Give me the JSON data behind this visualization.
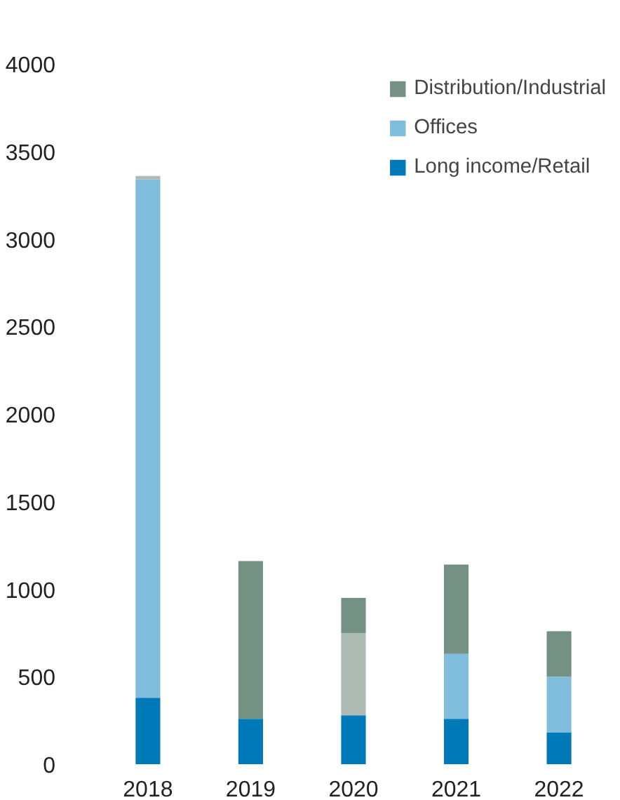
{
  "chart_data": {
    "type": "bar",
    "stacked": true,
    "categories": [
      "2018",
      "2019",
      "2020",
      "2021",
      "2022"
    ],
    "series": [
      {
        "name": "Long income/Retail",
        "color": "#0079b9",
        "values": [
          380,
          260,
          280,
          260,
          180
        ]
      },
      {
        "name": "Offices",
        "color": "#80bcdc",
        "values": [
          2960,
          0,
          0,
          370,
          320
        ]
      },
      {
        "color": "#aebbb3",
        "values": [
          20,
          0,
          470,
          0,
          0
        ]
      },
      {
        "name": "Distribution/Industrial",
        "color": "#759184",
        "values": [
          0,
          900,
          200,
          510,
          260
        ]
      }
    ],
    "ylim": [
      0,
      4000
    ],
    "yticks": [
      0,
      500,
      1000,
      1500,
      2000,
      2500,
      3000,
      3500,
      4000
    ],
    "grid": false,
    "legend": "top right"
  }
}
